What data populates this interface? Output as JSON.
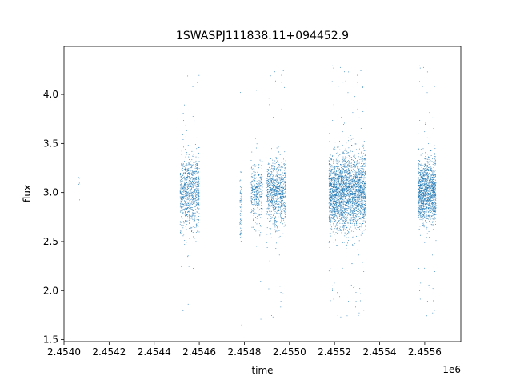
{
  "chart_data": {
    "type": "scatter",
    "title": "1SWASPJ111838.11+094452.9",
    "xlabel": "time",
    "ylabel": "flux",
    "x_offset_label": "1e6",
    "xlim": [
      2454000,
      2455760
    ],
    "ylim": [
      1.48,
      4.49
    ],
    "x_ticks": [
      2454000,
      2454200,
      2454400,
      2454600,
      2454800,
      2455000,
      2455200,
      2455400,
      2455600
    ],
    "x_tick_labels": [
      "2.4540",
      "2.4542",
      "2.4544",
      "2.4546",
      "2.4548",
      "2.4550",
      "2.4552",
      "2.4554",
      "2.4556"
    ],
    "y_ticks": [
      1.5,
      2.0,
      2.5,
      3.0,
      3.5,
      4.0
    ],
    "y_tick_labels": [
      "1.5",
      "2.0",
      "2.5",
      "3.0",
      "3.5",
      "4.0"
    ],
    "grid": false,
    "legend": "none",
    "marker_color": "#1f77b4",
    "series": [
      {
        "description_points": "dense observing seasons of point clouds",
        "clusters": [
          {
            "x_range": [
              2454065,
              2454070
            ],
            "y_center": 3.1,
            "y_spread": 0.2,
            "count": 6
          },
          {
            "x_range": [
              2454515,
              2454600
            ],
            "y_center": 3.0,
            "y_spread": 0.35,
            "count": 900
          },
          {
            "x_range": [
              2454780,
              2454790
            ],
            "y_center": 2.85,
            "y_spread": 0.3,
            "count": 80
          },
          {
            "x_range": [
              2454830,
              2454880
            ],
            "y_center": 3.0,
            "y_spread": 0.3,
            "count": 350
          },
          {
            "x_range": [
              2454900,
              2454985
            ],
            "y_center": 3.0,
            "y_spread": 0.3,
            "count": 900
          },
          {
            "x_range": [
              2455175,
              2455340
            ],
            "y_center": 3.0,
            "y_spread": 0.35,
            "count": 2600
          },
          {
            "x_range": [
              2455570,
              2455650
            ],
            "y_center": 3.0,
            "y_spread": 0.3,
            "count": 1400
          }
        ]
      }
    ]
  }
}
